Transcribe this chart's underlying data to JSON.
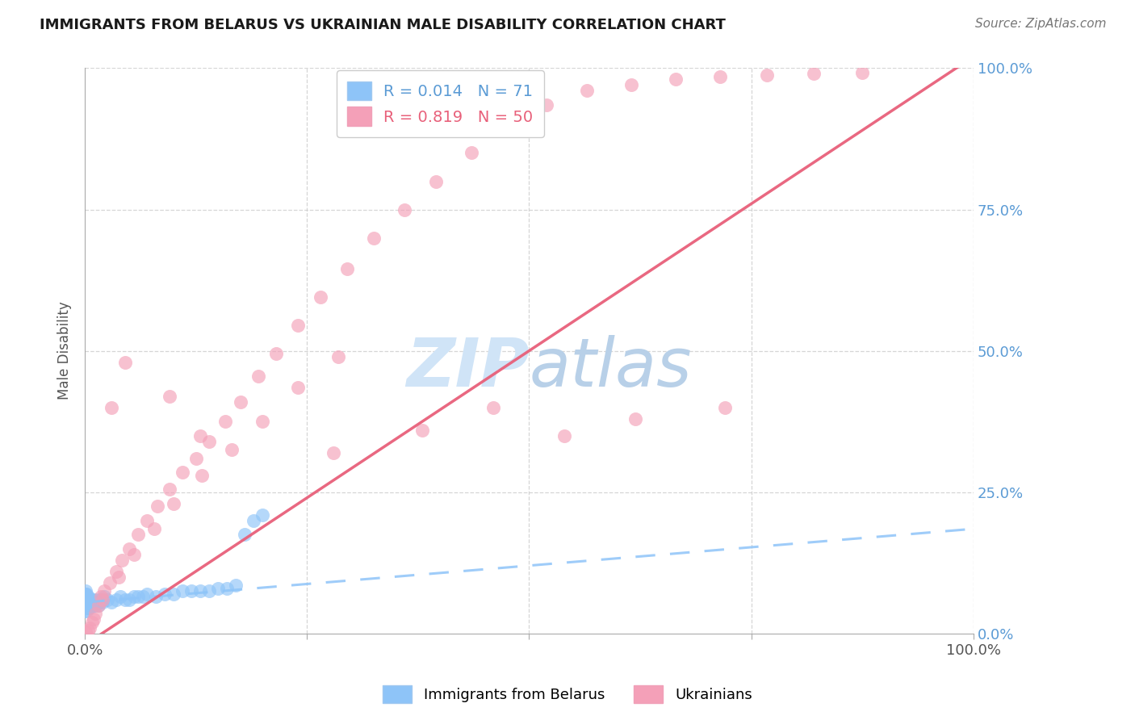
{
  "title": "IMMIGRANTS FROM BELARUS VS UKRAINIAN MALE DISABILITY CORRELATION CHART",
  "source": "Source: ZipAtlas.com",
  "ylabel": "Male Disability",
  "legend_label1": "Immigrants from Belarus",
  "legend_label2": "Ukrainians",
  "R1": 0.014,
  "N1": 71,
  "R2": 0.819,
  "N2": 50,
  "color1": "#8EC4F8",
  "color2": "#F4A0B8",
  "trend_color1": "#8EC4F8",
  "trend_color2": "#E8607A",
  "title_color": "#1a1a1a",
  "axis_label_color": "#555555",
  "tick_color_right": "#5B9BD5",
  "watermark_color": "#D0E4F7",
  "background_color": "#FFFFFF",
  "grid_color": "#CCCCCC",
  "xlim": [
    0.0,
    1.0
  ],
  "ylim": [
    0.0,
    1.0
  ],
  "belarus_x": [
    0.001,
    0.001,
    0.001,
    0.001,
    0.001,
    0.002,
    0.002,
    0.002,
    0.002,
    0.002,
    0.002,
    0.003,
    0.003,
    0.003,
    0.003,
    0.003,
    0.004,
    0.004,
    0.004,
    0.004,
    0.005,
    0.005,
    0.005,
    0.005,
    0.005,
    0.006,
    0.006,
    0.006,
    0.007,
    0.007,
    0.007,
    0.008,
    0.008,
    0.009,
    0.009,
    0.01,
    0.01,
    0.01,
    0.012,
    0.012,
    0.013,
    0.014,
    0.015,
    0.016,
    0.018,
    0.02,
    0.022,
    0.025,
    0.03,
    0.035,
    0.04,
    0.045,
    0.05,
    0.055,
    0.06,
    0.065,
    0.07,
    0.08,
    0.09,
    0.1,
    0.11,
    0.12,
    0.13,
    0.14,
    0.15,
    0.16,
    0.17,
    0.18,
    0.19,
    0.2
  ],
  "belarus_y": [
    0.045,
    0.055,
    0.05,
    0.06,
    0.065,
    0.04,
    0.05,
    0.055,
    0.045,
    0.06,
    0.07,
    0.05,
    0.055,
    0.045,
    0.06,
    0.065,
    0.05,
    0.055,
    0.045,
    0.06,
    0.05,
    0.055,
    0.06,
    0.045,
    0.05,
    0.055,
    0.05,
    0.06,
    0.05,
    0.055,
    0.06,
    0.055,
    0.05,
    0.05,
    0.055,
    0.055,
    0.05,
    0.06,
    0.055,
    0.05,
    0.06,
    0.055,
    0.05,
    0.055,
    0.06,
    0.055,
    0.065,
    0.06,
    0.055,
    0.06,
    0.065,
    0.06,
    0.06,
    0.065,
    0.065,
    0.065,
    0.07,
    0.065,
    0.07,
    0.07,
    0.075,
    0.075,
    0.075,
    0.075,
    0.08,
    0.08,
    0.085,
    0.175,
    0.2,
    0.21
  ],
  "belarus_cluster_x": [
    0.0,
    0.0,
    0.0,
    0.0,
    0.0,
    0.0,
    0.0,
    0.0,
    0.001,
    0.001,
    0.001,
    0.001,
    0.001,
    0.001,
    0.002,
    0.002,
    0.002,
    0.003,
    0.003,
    0.003,
    0.004,
    0.004,
    0.005,
    0.005,
    0.006,
    0.008,
    0.01,
    0.015,
    0.02
  ],
  "belarus_cluster_y": [
    0.05,
    0.055,
    0.06,
    0.065,
    0.07,
    0.045,
    0.04,
    0.05,
    0.05,
    0.055,
    0.06,
    0.065,
    0.07,
    0.075,
    0.05,
    0.055,
    0.06,
    0.05,
    0.055,
    0.06,
    0.05,
    0.055,
    0.05,
    0.055,
    0.05,
    0.055,
    0.055,
    0.055,
    0.06
  ],
  "ukraine_x": [
    0.001,
    0.003,
    0.005,
    0.008,
    0.01,
    0.012,
    0.015,
    0.018,
    0.022,
    0.028,
    0.035,
    0.042,
    0.05,
    0.06,
    0.07,
    0.082,
    0.095,
    0.11,
    0.125,
    0.14,
    0.158,
    0.175,
    0.195,
    0.215,
    0.24,
    0.265,
    0.295,
    0.325,
    0.36,
    0.395,
    0.435,
    0.475,
    0.52,
    0.565,
    0.615,
    0.665,
    0.715,
    0.768,
    0.82,
    0.875,
    0.02,
    0.038,
    0.055,
    0.078,
    0.1,
    0.132,
    0.165,
    0.2,
    0.24,
    0.285
  ],
  "ukraine_y": [
    0.002,
    0.005,
    0.01,
    0.02,
    0.025,
    0.035,
    0.05,
    0.065,
    0.075,
    0.09,
    0.11,
    0.13,
    0.15,
    0.175,
    0.2,
    0.225,
    0.255,
    0.285,
    0.31,
    0.34,
    0.375,
    0.41,
    0.455,
    0.495,
    0.545,
    0.595,
    0.645,
    0.7,
    0.75,
    0.8,
    0.85,
    0.895,
    0.935,
    0.96,
    0.97,
    0.98,
    0.985,
    0.988,
    0.99,
    0.992,
    0.06,
    0.1,
    0.14,
    0.185,
    0.23,
    0.28,
    0.325,
    0.375,
    0.435,
    0.49
  ],
  "ukraine_extra_x": [
    0.03,
    0.045,
    0.095,
    0.13,
    0.28,
    0.38,
    0.46,
    0.54,
    0.62,
    0.72
  ],
  "ukraine_extra_y": [
    0.4,
    0.48,
    0.42,
    0.35,
    0.32,
    0.36,
    0.4,
    0.35,
    0.38,
    0.4
  ],
  "trend1_x": [
    0.0,
    1.0
  ],
  "trend1_y": [
    0.055,
    0.185
  ],
  "trend2_x": [
    0.0,
    1.0
  ],
  "trend2_y": [
    -0.02,
    1.02
  ]
}
